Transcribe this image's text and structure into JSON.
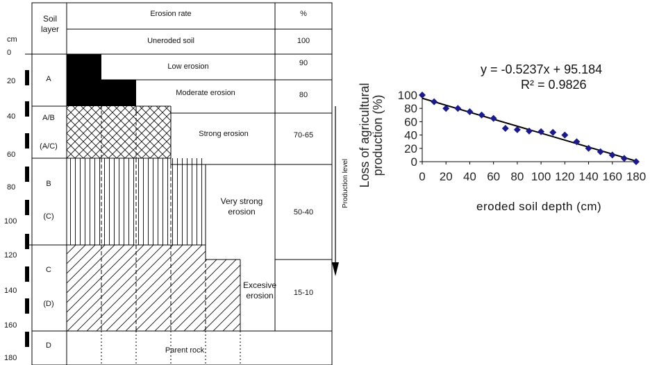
{
  "diagram": {
    "header": {
      "unit_label": "cm",
      "soil_layer_label": "Soil layer",
      "erosion_rate_label": "Erosion rate",
      "percent_label": "%"
    },
    "uneroded_row": {
      "label": "Uneroded soil",
      "percent": "100"
    },
    "depth_ticks": [
      "0",
      "20",
      "40",
      "60",
      "80",
      "100",
      "120",
      "140",
      "160",
      "180"
    ],
    "layers": [
      {
        "name": "A",
        "sub": ""
      },
      {
        "name": "A/B",
        "sub": "(A/C)"
      },
      {
        "name": "B",
        "sub": "(C)"
      },
      {
        "name": "C",
        "sub": "(D)"
      },
      {
        "name": "D",
        "sub": ""
      }
    ],
    "classes": [
      {
        "label": "Low erosion",
        "percent": "90"
      },
      {
        "label": "Moderate erosion",
        "percent": "80"
      },
      {
        "label": "Strong erosion",
        "percent": "70-65"
      },
      {
        "label_line1": "Very strong",
        "label_line2": "erosion",
        "percent": "50-40"
      },
      {
        "label_line1": "Excesive",
        "label_line2": "erosion",
        "percent": "15-10"
      }
    ],
    "parent_rock": "Parent rock",
    "production_level": "Production level"
  },
  "chart_data": {
    "type": "scatter",
    "equation": "y = -0.5237x  + 95.184",
    "r2": "R² = 0.9826",
    "xlabel": "eroded soil depth (cm)",
    "ylabel_line1": "Loss of agricultural",
    "ylabel_line2": "production (%)",
    "xlim": [
      0,
      180
    ],
    "ylim": [
      0,
      100
    ],
    "xticks": [
      0,
      20,
      40,
      60,
      80,
      100,
      120,
      140,
      160,
      180
    ],
    "yticks": [
      0,
      20,
      40,
      60,
      80,
      100
    ],
    "points": [
      [
        0,
        100
      ],
      [
        10,
        90
      ],
      [
        20,
        80
      ],
      [
        30,
        80
      ],
      [
        40,
        75
      ],
      [
        50,
        70
      ],
      [
        60,
        65
      ],
      [
        70,
        50
      ],
      [
        80,
        48
      ],
      [
        90,
        46
      ],
      [
        100,
        45
      ],
      [
        110,
        44
      ],
      [
        120,
        40
      ],
      [
        130,
        30
      ],
      [
        140,
        20
      ],
      [
        150,
        15
      ],
      [
        160,
        10
      ],
      [
        170,
        5
      ],
      [
        180,
        0
      ]
    ],
    "trendline": {
      "slope": -0.5237,
      "intercept": 95.184
    },
    "marker_color": "#1a1a8c",
    "line_color": "#000000"
  }
}
